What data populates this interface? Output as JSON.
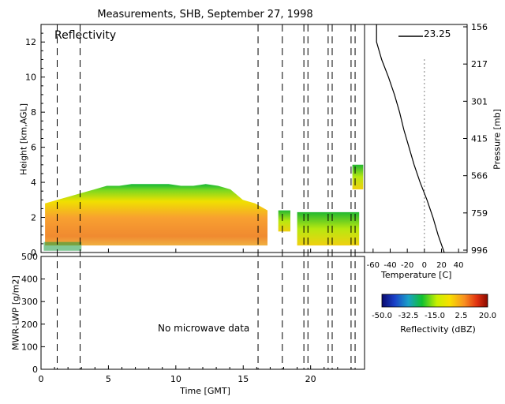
{
  "figure": {
    "title": "Measurements, SHB, September 27, 1998",
    "panel_label": "Reflectivity",
    "no_data_text": "No microwave data",
    "temp_annotation": "23.25"
  },
  "chart_data": [
    {
      "type": "heatmap",
      "title": "Reflectivity",
      "xlabel": "Time [GMT]",
      "ylabel": "Height [km,AGL]",
      "xlim": [
        0,
        24
      ],
      "ylim": [
        0,
        13
      ],
      "yticks": [
        0,
        2,
        4,
        6,
        8,
        10,
        12
      ],
      "vertical_markers": [
        1.2,
        2.9,
        16.1,
        17.9,
        19.5,
        19.8,
        21.3,
        21.6,
        23.0,
        23.3
      ],
      "echo_regions": [
        {
          "x": [
            0.3,
            16.8
          ],
          "base": 0.4,
          "top": [
            2.8,
            3.0,
            3.2,
            3.4,
            3.6,
            3.8,
            3.8,
            3.9,
            3.9,
            3.9,
            3.9,
            3.8,
            3.8,
            3.9,
            3.8,
            3.6,
            3.0,
            2.8,
            2.4
          ]
        },
        {
          "x": [
            17.6,
            18.5
          ],
          "base": 1.2,
          "top": [
            2.4
          ]
        },
        {
          "x": [
            19.0,
            23.6
          ],
          "base": 0.4,
          "top": [
            2.3
          ]
        },
        {
          "x": [
            23.1,
            23.9
          ],
          "base": 3.6,
          "top": [
            5.0
          ]
        }
      ]
    },
    {
      "type": "line",
      "xlabel": "Time [GMT]",
      "ylabel": "MWR-LWP [g/m2]",
      "xlim": [
        0,
        24
      ],
      "ylim": [
        0,
        500
      ],
      "xticks": [
        0,
        5,
        10,
        15,
        20
      ],
      "yticks": [
        0,
        100,
        200,
        300,
        400,
        500
      ]
    },
    {
      "type": "line",
      "xlabel": "Temperature [C]",
      "ylabel": "Pressure [mb]",
      "xlim": [
        -70,
        50
      ],
      "xticks": [
        -60,
        -40,
        -20,
        0,
        20,
        40
      ],
      "pressure_ticks": [
        "156",
        "217",
        "301",
        "415",
        "566",
        "759",
        "996"
      ],
      "series": [
        {
          "height_km": [
            0.0,
            1.0,
            2.0,
            3.0,
            4.0,
            5.0,
            6.0,
            7.0,
            8.0,
            9.0,
            10.0,
            11.0,
            12.0,
            13.0
          ],
          "temperature_c": [
            23.25,
            16,
            10,
            3,
            -5,
            -12,
            -18,
            -24,
            -29,
            -35,
            -42,
            -50,
            -56,
            -56
          ]
        }
      ],
      "reference_line_c": 0
    },
    {
      "type": "heatmap",
      "title": "Reflectivity (dBZ)",
      "colorbar_ticks": [
        "-50.0",
        "-32.5",
        "-15.0",
        "2.5",
        "20.0"
      ],
      "range": [
        -50,
        20
      ]
    }
  ]
}
